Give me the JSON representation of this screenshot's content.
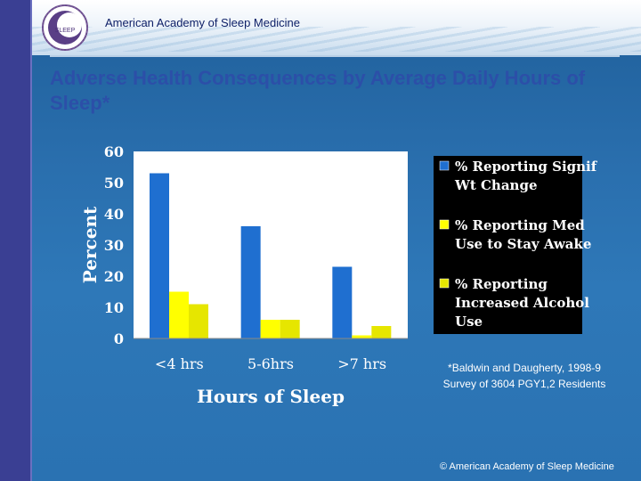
{
  "header": {
    "org_name": "American Academy of Sleep Medicine",
    "logo_text": "SLEEP"
  },
  "slide_title": "Adverse Health Consequences by Average Daily Hours of Sleep*",
  "footnote": "*Baldwin and Daugherty, 1998-9 Survey of 3604 PGY1,2 Residents",
  "copyright": "© American Academy of Sleep Medicine",
  "colors": {
    "series1": "#1f6fd0",
    "series2": "#ffff00",
    "series3": "#e6e600",
    "plot_bg": "#ffffff",
    "legend_bg": "#000000"
  },
  "chart_data": {
    "type": "bar",
    "categories": [
      "<4 hrs",
      "5-6hrs",
      ">7 hrs"
    ],
    "series": [
      {
        "name": "% Reporting Signif Wt Change",
        "values": [
          53,
          36,
          23
        ]
      },
      {
        "name": "% Reporting Med Use to Stay Awake",
        "values": [
          15,
          6,
          1
        ]
      },
      {
        "name": "% Reporting Increased Alcohol Use",
        "values": [
          11,
          6,
          4
        ]
      }
    ],
    "xlabel": "Hours of Sleep",
    "ylabel": "Percent",
    "ylim": [
      0,
      60
    ],
    "yticks": [
      "0",
      "10",
      "20",
      "30",
      "40",
      "50",
      "60"
    ],
    "grid": false,
    "legend_position": "right"
  }
}
